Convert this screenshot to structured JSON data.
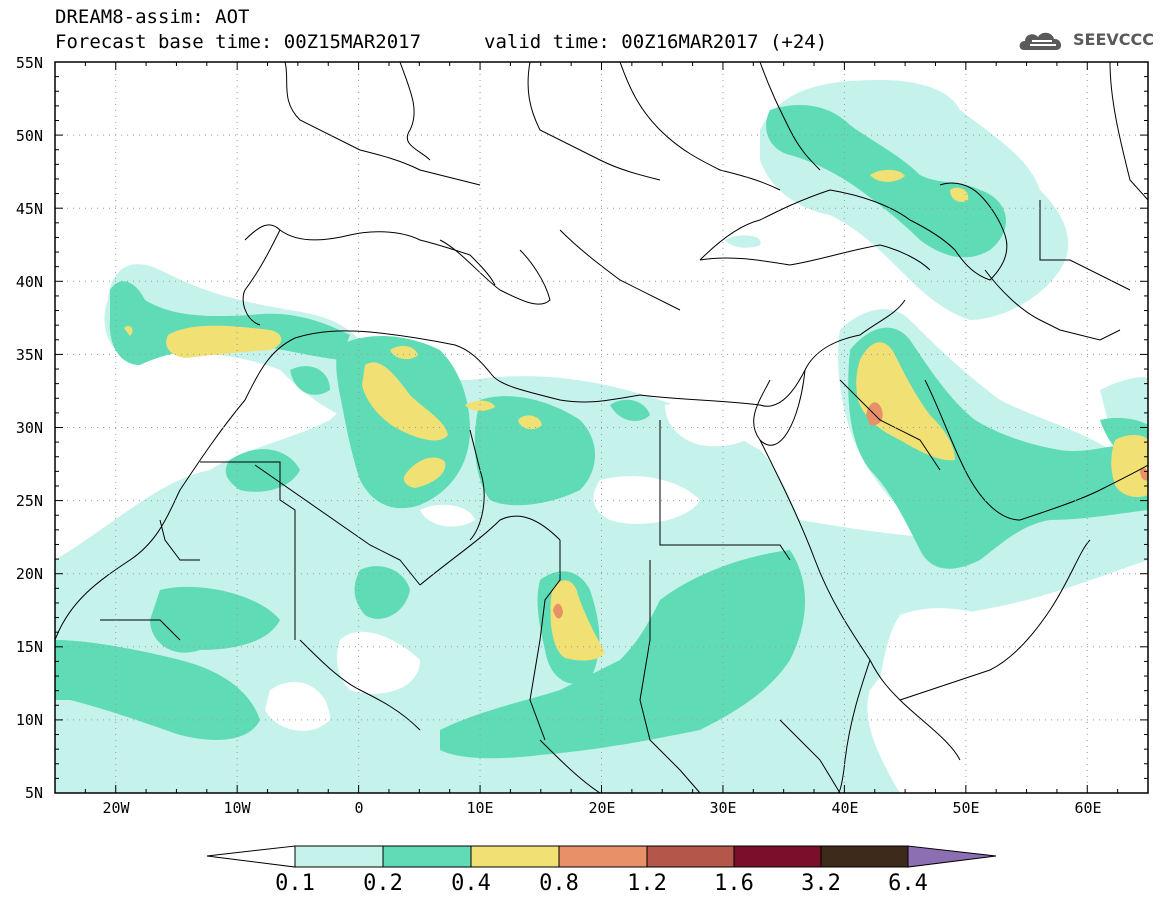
{
  "header": {
    "title_line1": "DREAM8-assim: AOT",
    "title_line2": "Forecast base time: 00Z15MAR2017",
    "valid_time": "valid time: 00Z16MAR2017 (+24)"
  },
  "logo": {
    "text": "SEEVCCC"
  },
  "map": {
    "lat_labels": [
      "55N",
      "50N",
      "45N",
      "40N",
      "35N",
      "30N",
      "25N",
      "20N",
      "15N",
      "10N",
      "5N"
    ],
    "lon_labels": [
      "20W",
      "10W",
      "0",
      "10E",
      "20E",
      "30E",
      "40E",
      "50E",
      "60E"
    ],
    "lon_range": [
      -25,
      65
    ],
    "lat_range": [
      5,
      55
    ],
    "grid": "dotted"
  },
  "legend": {
    "variable": "AOT",
    "thresholds": [
      "0.1",
      "0.2",
      "0.4",
      "0.8",
      "1.2",
      "1.6",
      "3.2",
      "6.4"
    ],
    "colors": {
      "c01": "#c6f2ec",
      "c02": "#5fdcb6",
      "c04": "#f1e174",
      "c08": "#e89168",
      "c12": "#b4564a",
      "c16": "#7b0f2a",
      "c32": "#3d2a1a",
      "c64": "#8c6fb2"
    }
  }
}
